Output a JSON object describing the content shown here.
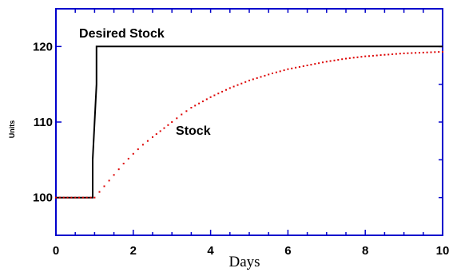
{
  "chart_data": {
    "type": "line",
    "xlabel": "Days",
    "ylabel": "Units",
    "xlim": [
      0,
      10
    ],
    "ylim": [
      95,
      125
    ],
    "x_ticks": [
      "0",
      "2",
      "4",
      "6",
      "8",
      "10"
    ],
    "y_ticks": [
      "100",
      "110",
      "120"
    ],
    "grid": false,
    "frame_color": "#0000cc",
    "series": [
      {
        "name": "Desired Stock",
        "style": "solid",
        "color": "#000000",
        "x": [
          0,
          0.95,
          0.95,
          1.05,
          1.05,
          10
        ],
        "y": [
          100,
          100,
          105,
          115,
          120,
          120
        ]
      },
      {
        "name": "Stock",
        "style": "dotted",
        "color": "#dd0000",
        "x": [
          0,
          0.5,
          1.0,
          1.25,
          1.5,
          1.75,
          2.0,
          2.25,
          2.5,
          3.0,
          3.25,
          3.5,
          4.0,
          4.5,
          5.0,
          5.5,
          6.0,
          6.5,
          7.0,
          7.5,
          8.0,
          8.5,
          9.0,
          9.5,
          10.0
        ],
        "y": [
          100,
          100,
          100,
          101.5,
          103,
          104.5,
          105.8,
          107,
          108,
          110,
          111,
          111.9,
          113.3,
          114.5,
          115.5,
          116.3,
          117,
          117.5,
          118,
          118.4,
          118.7,
          118.9,
          119.1,
          119.2,
          119.3
        ]
      }
    ],
    "annotations": [
      {
        "text": "Desired Stock",
        "x": 0.6,
        "y": 121.2
      },
      {
        "text": "Stock",
        "x": 3.1,
        "y": 108.3
      }
    ]
  }
}
